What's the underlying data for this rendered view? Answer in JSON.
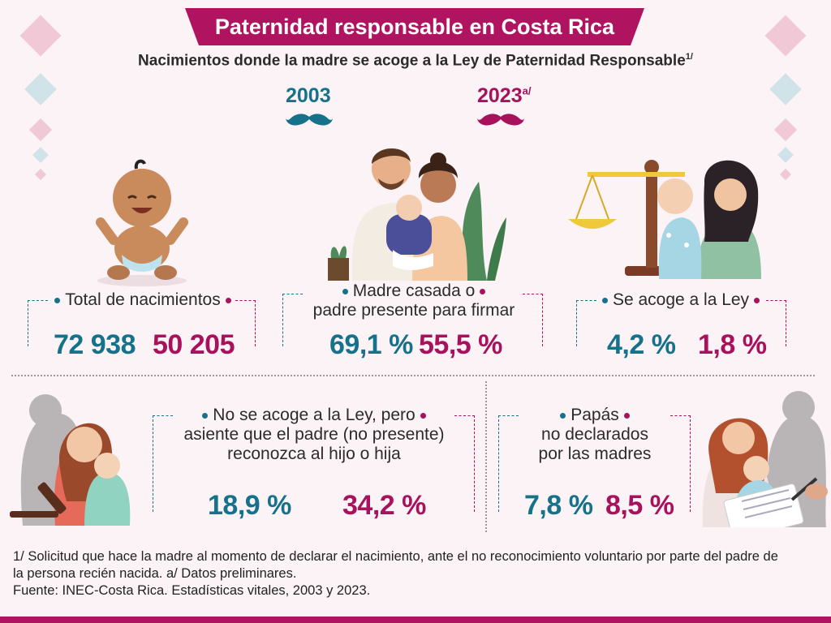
{
  "title": "Paternidad responsable en Costa Rica",
  "subtitle": "Nacimientos donde la madre se acoge a la Ley de Paternidad Responsable",
  "subtitle_note": "1/",
  "years": {
    "y1": "2003",
    "y2": "2023",
    "y2_note": "a/"
  },
  "colors": {
    "teal": "#16718a",
    "magenta": "#a8115c",
    "banner": "#b0135f"
  },
  "stats": {
    "total": {
      "label": "Total de nacimientos",
      "v2003": "72 938",
      "v2023": "50 205"
    },
    "married": {
      "label_l1": "Madre casada o",
      "label_l2": "padre presente para firmar",
      "v2003": "69,1 %",
      "v2023": "55,5 %"
    },
    "law": {
      "label": "Se acoge a la Ley",
      "v2003": "4,2 %",
      "v2023": "1,8 %"
    },
    "no_law": {
      "label_l1": "No se acoge a la Ley, pero",
      "label_l2": "asiente que el padre (no presente)",
      "label_l3": "reconozca al hijo o hija",
      "v2003": "18,9 %",
      "v2023": "34,2 %"
    },
    "undeclared": {
      "label_l1": "Papás",
      "label_l2": "no declarados",
      "label_l3": "por las madres",
      "v2003": "7,8 %",
      "v2023": "8,5 %"
    }
  },
  "footnote_l1": "1/ Solicitud que hace la madre al momento de declarar el nacimiento, ante el no reconocimiento voluntario por parte del padre de",
  "footnote_l2": "la persona recién nacida. a/ Datos preliminares.",
  "source": "Fuente: INEC-Costa Rica. Estadísticas vitales, 2003 y 2023."
}
